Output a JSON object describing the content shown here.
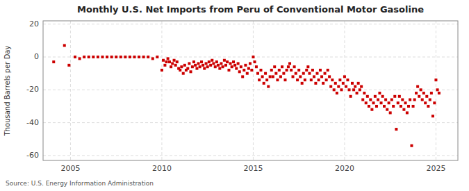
{
  "chart_data": {
    "type": "scatter",
    "title": "Monthly U.S. Net Imports from Peru of Conventional Motor Gasoline",
    "ylabel": "Thousand Barrels per Day",
    "annotations": [
      "Source: U.S. Energy Information Administration"
    ],
    "color": "#cc0000",
    "marker": "square",
    "grid": true,
    "xlim": [
      2003.5,
      2026.2
    ],
    "xticks": [
      2005,
      2010,
      2015,
      2020,
      2025
    ],
    "ylim": [
      -63,
      22
    ],
    "yticks": [
      -60,
      -40,
      -20,
      0,
      20
    ],
    "x": [
      2004.08,
      2004.67,
      2004.92,
      2005.25,
      2005.5,
      2005.75,
      2006.0,
      2006.25,
      2006.5,
      2006.75,
      2007.0,
      2007.25,
      2007.5,
      2007.75,
      2008.0,
      2008.25,
      2008.5,
      2008.75,
      2009.0,
      2009.25,
      2009.5,
      2009.75,
      2010.0,
      2010.08,
      2010.17,
      2010.25,
      2010.33,
      2010.42,
      2010.5,
      2010.58,
      2010.67,
      2010.75,
      2010.83,
      2010.92,
      2011.0,
      2011.08,
      2011.17,
      2011.25,
      2011.33,
      2011.42,
      2011.5,
      2011.58,
      2011.67,
      2011.75,
      2011.83,
      2011.92,
      2012.0,
      2012.08,
      2012.17,
      2012.25,
      2012.33,
      2012.42,
      2012.5,
      2012.58,
      2012.67,
      2012.75,
      2012.83,
      2012.92,
      2013.0,
      2013.08,
      2013.17,
      2013.25,
      2013.33,
      2013.42,
      2013.5,
      2013.58,
      2013.67,
      2013.75,
      2013.83,
      2013.92,
      2014.0,
      2014.08,
      2014.17,
      2014.25,
      2014.33,
      2014.42,
      2014.5,
      2014.58,
      2014.67,
      2014.75,
      2014.83,
      2014.92,
      2015.0,
      2015.08,
      2015.17,
      2015.25,
      2015.33,
      2015.42,
      2015.5,
      2015.58,
      2015.67,
      2015.75,
      2015.83,
      2015.92,
      2016.0,
      2016.08,
      2016.17,
      2016.25,
      2016.33,
      2016.42,
      2016.5,
      2016.58,
      2016.67,
      2016.75,
      2016.83,
      2016.92,
      2017.0,
      2017.08,
      2017.17,
      2017.25,
      2017.33,
      2017.42,
      2017.5,
      2017.58,
      2017.67,
      2017.75,
      2017.83,
      2017.92,
      2018.0,
      2018.08,
      2018.17,
      2018.25,
      2018.33,
      2018.42,
      2018.5,
      2018.58,
      2018.67,
      2018.75,
      2018.83,
      2018.92,
      2019.0,
      2019.08,
      2019.17,
      2019.25,
      2019.33,
      2019.42,
      2019.5,
      2019.58,
      2019.67,
      2019.75,
      2019.83,
      2019.92,
      2020.0,
      2020.08,
      2020.17,
      2020.25,
      2020.33,
      2020.42,
      2020.5,
      2020.58,
      2020.67,
      2020.75,
      2020.83,
      2020.92,
      2021.0,
      2021.08,
      2021.17,
      2021.25,
      2021.33,
      2021.42,
      2021.5,
      2021.58,
      2021.67,
      2021.75,
      2021.83,
      2021.92,
      2022.0,
      2022.08,
      2022.17,
      2022.25,
      2022.33,
      2022.42,
      2022.5,
      2022.58,
      2022.67,
      2022.75,
      2022.83,
      2022.92,
      2023.0,
      2023.08,
      2023.17,
      2023.25,
      2023.33,
      2023.42,
      2023.5,
      2023.58,
      2023.67,
      2023.75,
      2023.83,
      2023.92,
      2024.0,
      2024.08,
      2024.17,
      2024.25,
      2024.33,
      2024.42,
      2024.5,
      2024.58,
      2024.67,
      2024.75,
      2024.83,
      2024.92,
      2025.0,
      2025.08,
      2025.17
    ],
    "values": [
      -3,
      7,
      -5,
      0,
      -1,
      0,
      0,
      0,
      0,
      0,
      0,
      0,
      0,
      0,
      0,
      0,
      0,
      0,
      0,
      0,
      -1,
      0,
      -8,
      -2,
      -5,
      -3,
      -1,
      -3,
      -6,
      -4,
      -2,
      -5,
      -3,
      -7,
      -8,
      -6,
      -10,
      -5,
      -8,
      -7,
      -4,
      -9,
      -6,
      -3,
      -5,
      -7,
      -4,
      -6,
      -3,
      -5,
      -7,
      -4,
      -6,
      -3,
      -5,
      -2,
      -4,
      -6,
      -3,
      -5,
      -7,
      -4,
      -6,
      -2,
      -5,
      -3,
      -8,
      -4,
      -6,
      -3,
      -5,
      -7,
      -4,
      -9,
      -6,
      -12,
      -8,
      -5,
      -10,
      -7,
      -4,
      -8,
      0,
      -3,
      -6,
      -10,
      -14,
      -8,
      -12,
      -16,
      -10,
      -14,
      -18,
      -12,
      -8,
      -12,
      -6,
      -10,
      -14,
      -8,
      -12,
      -6,
      -10,
      -14,
      -8,
      -6,
      -4,
      -8,
      -12,
      -6,
      -10,
      -14,
      -8,
      -12,
      -16,
      -10,
      -14,
      -8,
      -6,
      -10,
      -14,
      -8,
      -12,
      -16,
      -10,
      -14,
      -8,
      -12,
      -16,
      -10,
      -14,
      -8,
      -12,
      -18,
      -14,
      -20,
      -16,
      -22,
      -18,
      -14,
      -20,
      -16,
      -12,
      -18,
      -14,
      -20,
      -24,
      -16,
      -20,
      -18,
      -22,
      -16,
      -20,
      -18,
      -26,
      -22,
      -28,
      -24,
      -30,
      -26,
      -32,
      -28,
      -24,
      -30,
      -26,
      -22,
      -28,
      -24,
      -30,
      -26,
      -32,
      -28,
      -34,
      -26,
      -30,
      -24,
      -44,
      -28,
      -24,
      -30,
      -26,
      -32,
      -28,
      -34,
      -30,
      -26,
      -54,
      -30,
      -26,
      -22,
      -18,
      -24,
      -20,
      -26,
      -22,
      -28,
      -24,
      -30,
      -26,
      -22,
      -36,
      -28,
      -14,
      -20,
      -22
    ]
  }
}
